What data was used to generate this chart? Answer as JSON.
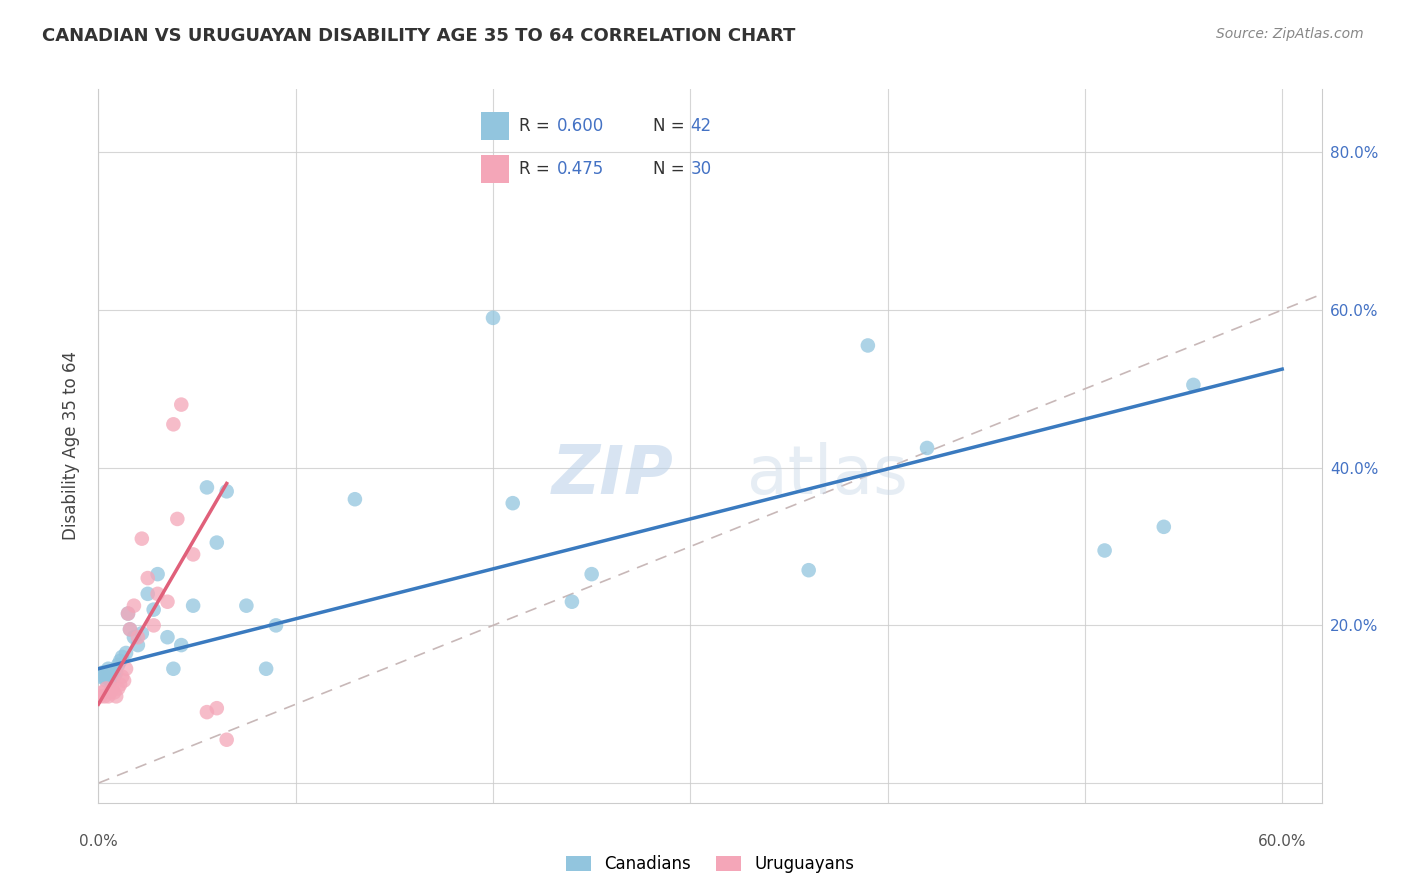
{
  "title": "CANADIAN VS URUGUAYAN DISABILITY AGE 35 TO 64 CORRELATION CHART",
  "source": "Source: ZipAtlas.com",
  "ylabel": "Disability Age 35 to 64",
  "xlim": [
    0.0,
    0.62
  ],
  "ylim": [
    -0.025,
    0.88
  ],
  "yticks": [
    0.0,
    0.2,
    0.4,
    0.6,
    0.8
  ],
  "xticks": [
    0.0,
    0.1,
    0.2,
    0.3,
    0.4,
    0.5,
    0.6
  ],
  "canadian_color": "#92c5de",
  "uruguayan_color": "#f4a6b8",
  "canadian_r": 0.6,
  "canadian_n": 42,
  "uruguayan_r": 0.475,
  "uruguayan_n": 30,
  "diagonal_color": "#c8b8b8",
  "canadian_line_color": "#3a7abf",
  "uruguayan_line_color": "#e0607a",
  "watermark_zip": "ZIP",
  "watermark_atlas": "atlas",
  "canadians_x": [
    0.001,
    0.002,
    0.003,
    0.004,
    0.005,
    0.006,
    0.007,
    0.008,
    0.009,
    0.01,
    0.011,
    0.012,
    0.014,
    0.015,
    0.016,
    0.018,
    0.02,
    0.022,
    0.025,
    0.028,
    0.03,
    0.035,
    0.038,
    0.042,
    0.048,
    0.055,
    0.06,
    0.065,
    0.075,
    0.085,
    0.09,
    0.13,
    0.2,
    0.21,
    0.24,
    0.25,
    0.36,
    0.39,
    0.42,
    0.51,
    0.54,
    0.555
  ],
  "canadians_y": [
    0.135,
    0.14,
    0.135,
    0.13,
    0.145,
    0.13,
    0.14,
    0.135,
    0.14,
    0.15,
    0.155,
    0.16,
    0.165,
    0.215,
    0.195,
    0.185,
    0.175,
    0.19,
    0.24,
    0.22,
    0.265,
    0.185,
    0.145,
    0.175,
    0.225,
    0.375,
    0.305,
    0.37,
    0.225,
    0.145,
    0.2,
    0.36,
    0.59,
    0.355,
    0.23,
    0.265,
    0.27,
    0.555,
    0.425,
    0.295,
    0.325,
    0.505
  ],
  "uruguayans_x": [
    0.001,
    0.002,
    0.003,
    0.004,
    0.005,
    0.006,
    0.007,
    0.008,
    0.009,
    0.01,
    0.011,
    0.012,
    0.013,
    0.014,
    0.015,
    0.016,
    0.018,
    0.02,
    0.022,
    0.025,
    0.028,
    0.03,
    0.035,
    0.038,
    0.04,
    0.042,
    0.048,
    0.055,
    0.06,
    0.065
  ],
  "uruguayans_y": [
    0.11,
    0.115,
    0.11,
    0.12,
    0.11,
    0.115,
    0.12,
    0.115,
    0.11,
    0.12,
    0.125,
    0.135,
    0.13,
    0.145,
    0.215,
    0.195,
    0.225,
    0.185,
    0.31,
    0.26,
    0.2,
    0.24,
    0.23,
    0.455,
    0.335,
    0.48,
    0.29,
    0.09,
    0.095,
    0.055
  ],
  "canadian_line_x0": 0.0,
  "canadian_line_y0": 0.145,
  "canadian_line_x1": 0.6,
  "canadian_line_y1": 0.525,
  "uruguayan_line_x0": 0.0,
  "uruguayan_line_y0": 0.1,
  "uruguayan_line_x1": 0.065,
  "uruguayan_line_y1": 0.38
}
